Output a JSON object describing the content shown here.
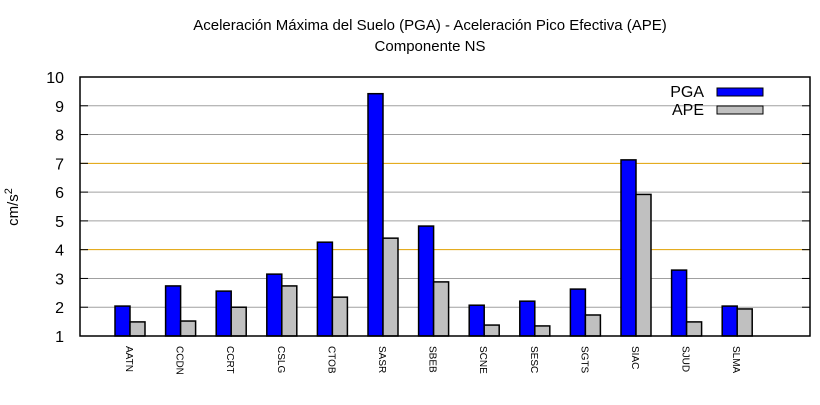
{
  "chart_data": {
    "type": "bar",
    "title": "Aceleración Máxima del Suelo (PGA) -  Aceleración Pico Efectiva (APE)",
    "subtitle": "Componente NS",
    "xlabel": "",
    "ylabel": "cm/s",
    "ylabel_superscript": "2",
    "ylim": [
      1,
      10
    ],
    "yticks": [
      1,
      2,
      3,
      4,
      5,
      6,
      7,
      8,
      9,
      10
    ],
    "highlight_gridlines": [
      4,
      7
    ],
    "legend_position": "top-right",
    "categories": [
      "AATN",
      "CCDN",
      "CCRT",
      "CSLG",
      "CTOB",
      "SASR",
      "SBEB",
      "SCNE",
      "SESC",
      "SGTS",
      "SIAC",
      "SJUD",
      "SLMA"
    ],
    "series": [
      {
        "name": "PGA",
        "color": "#0000ff",
        "values": [
          2.04,
          2.74,
          2.56,
          3.15,
          4.26,
          9.42,
          4.82,
          2.07,
          2.21,
          2.63,
          7.12,
          3.29,
          2.04
        ]
      },
      {
        "name": "APE",
        "color": "#c0c0c0",
        "values": [
          1.49,
          1.52,
          2.0,
          2.74,
          2.35,
          4.4,
          2.88,
          1.38,
          1.35,
          1.73,
          5.92,
          1.49,
          1.94
        ]
      }
    ],
    "colors": {
      "grid": "#a0a0a0",
      "highlight_grid": "#e0a000"
    }
  }
}
